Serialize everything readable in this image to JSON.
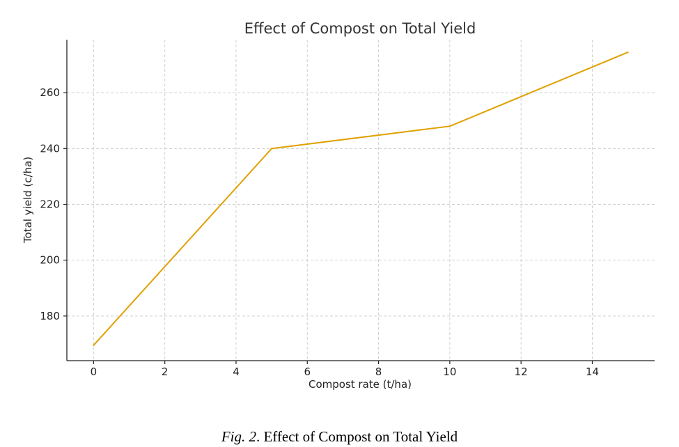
{
  "chart_data": {
    "type": "line",
    "title": "Effect of Compost on Total Yield",
    "xlabel": "Compost rate (t/ha)",
    "ylabel": "Total yield (c/ha)",
    "xlim": [
      -0.75,
      15.75
    ],
    "ylim": [
      164,
      279
    ],
    "xticks": [
      0,
      2,
      4,
      6,
      8,
      10,
      12,
      14
    ],
    "yticks": [
      180,
      200,
      220,
      240,
      260
    ],
    "grid": true,
    "series": [
      {
        "name": "Total yield",
        "color": "#e0a100",
        "x": [
          0,
          5,
          10,
          15
        ],
        "y": [
          169.5,
          240,
          248,
          274.5
        ]
      }
    ]
  },
  "caption": {
    "label": "Fig. 2",
    "separator": ".",
    "text": " Effect of Compost on Total Yield"
  }
}
